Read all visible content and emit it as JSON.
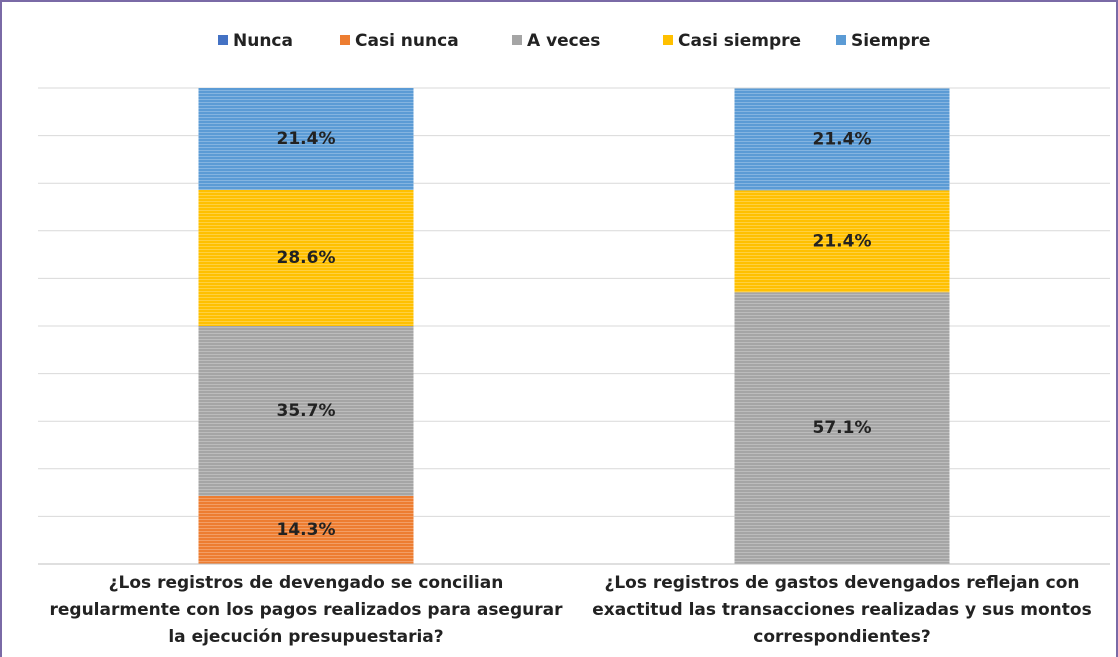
{
  "chart_data": {
    "type": "stacked_bar",
    "categories": [
      "¿Los registros de devengado se concilian regularmente con los pagos realizados para asegurar la ejecución presupuestaria?",
      "¿Los registros de gastos devengados reflejan con exactitud las transacciones realizadas y sus montos correspondientes?"
    ],
    "series": [
      {
        "name": "Nunca",
        "color": "#4472c4",
        "values": [
          0,
          0
        ],
        "value_labels": [
          null,
          null
        ]
      },
      {
        "name": "Casi nunca",
        "color": "#ed7d31",
        "values": [
          14.3,
          0
        ],
        "value_labels": [
          "14.3%",
          null
        ]
      },
      {
        "name": "A veces",
        "color": "#a5a5a5",
        "values": [
          35.7,
          57.1
        ],
        "value_labels": [
          "35.7%",
          "57.1%"
        ]
      },
      {
        "name": "Casi siempre",
        "color": "#ffc000",
        "values": [
          28.6,
          21.4
        ],
        "value_labels": [
          "28.6%",
          "21.4%"
        ]
      },
      {
        "name": "Siempre",
        "color": "#5b9bd5",
        "values": [
          21.4,
          21.4
        ],
        "value_labels": [
          "21.4%",
          "21.4%"
        ]
      }
    ],
    "ylim": [
      0,
      100
    ],
    "yticks": [
      0,
      10,
      20,
      30,
      40,
      50,
      60,
      70,
      80,
      90,
      100
    ],
    "grid": true,
    "legend": "top"
  }
}
